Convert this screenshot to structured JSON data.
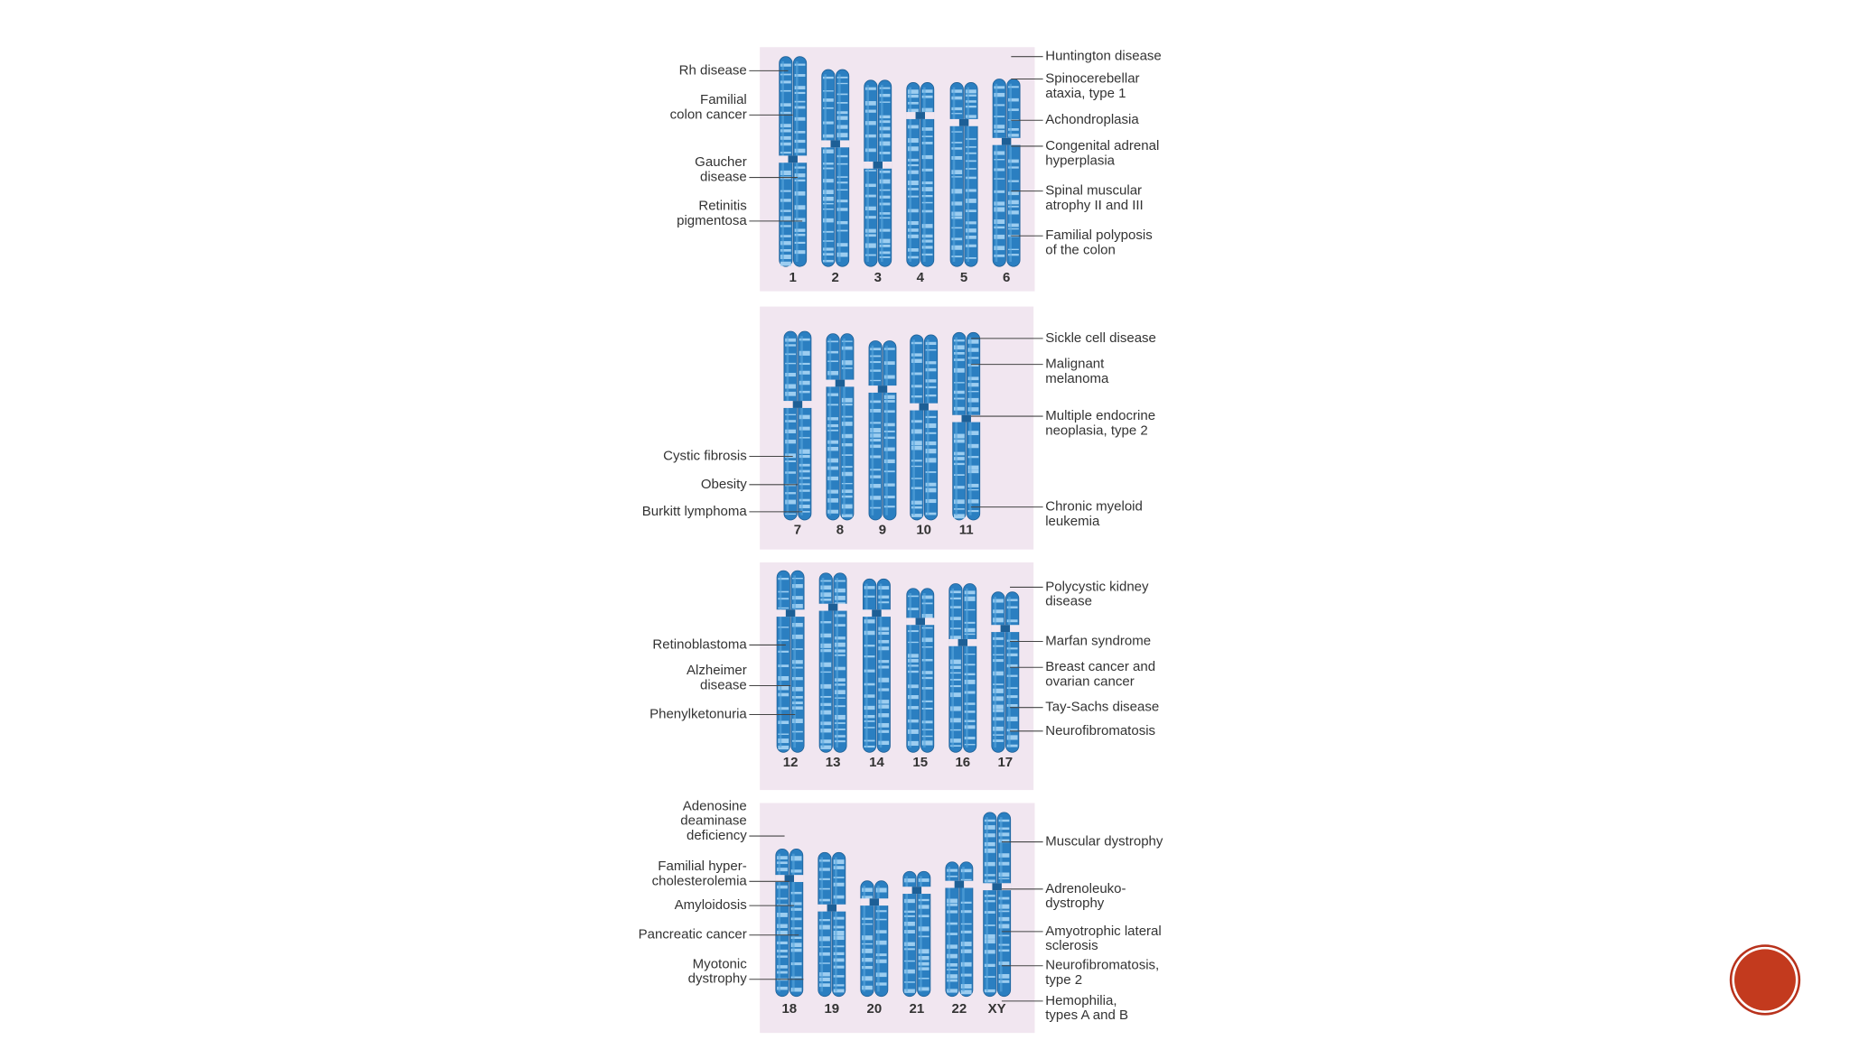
{
  "panels": [
    {
      "chromosomes": [
        "1",
        "2",
        "3",
        "4",
        "5",
        "6"
      ],
      "left": [
        {
          "lines": [
            "Rh disease"
          ]
        },
        {
          "lines": [
            "Familial",
            "colon cancer"
          ]
        },
        {
          "lines": [
            "Gaucher",
            "disease"
          ]
        },
        {
          "lines": [
            "Retinitis",
            "pigmentosa"
          ]
        }
      ],
      "right": [
        {
          "lines": [
            "Huntington disease"
          ]
        },
        {
          "lines": [
            "Spinocerebellar",
            "ataxia, type 1"
          ]
        },
        {
          "lines": [
            "Achondroplasia"
          ]
        },
        {
          "lines": [
            "Congenital adrenal",
            "hyperplasia"
          ]
        },
        {
          "lines": [
            "Spinal muscular",
            "atrophy II and III"
          ]
        },
        {
          "lines": [
            "Familial polyposis",
            "of the colon"
          ]
        }
      ]
    },
    {
      "chromosomes": [
        "7",
        "8",
        "9",
        "10",
        "11"
      ],
      "left": [
        {
          "lines": [
            "Cystic fibrosis"
          ]
        },
        {
          "lines": [
            "Obesity"
          ]
        },
        {
          "lines": [
            "Burkitt lymphoma"
          ]
        }
      ],
      "right": [
        {
          "lines": [
            "Sickle cell disease"
          ]
        },
        {
          "lines": [
            "Malignant",
            "melanoma"
          ]
        },
        {
          "lines": [
            "Multiple endocrine",
            "neoplasia, type 2"
          ]
        },
        {
          "lines": [
            "Chronic myeloid",
            "leukemia"
          ]
        }
      ]
    },
    {
      "chromosomes": [
        "12",
        "13",
        "14",
        "15",
        "16",
        "17"
      ],
      "left": [
        {
          "lines": [
            "Retinoblastoma"
          ]
        },
        {
          "lines": [
            "Alzheimer",
            "disease"
          ]
        },
        {
          "lines": [
            "Phenylketonuria"
          ]
        }
      ],
      "right": [
        {
          "lines": [
            "Polycystic kidney",
            "disease"
          ]
        },
        {
          "lines": [
            "Marfan syndrome"
          ]
        },
        {
          "lines": [
            "Breast cancer and",
            "ovarian cancer"
          ]
        },
        {
          "lines": [
            "Tay-Sachs disease"
          ]
        },
        {
          "lines": [
            "Neurofibromatosis"
          ]
        }
      ]
    },
    {
      "chromosomes": [
        "18",
        "19",
        "20",
        "21",
        "22",
        "XY"
      ],
      "left": [
        {
          "lines": [
            "Adenosine",
            "deaminase",
            "deficiency"
          ]
        },
        {
          "lines": [
            "Familial hyper-",
            "cholesterolemia"
          ]
        },
        {
          "lines": [
            "Amyloidosis"
          ]
        },
        {
          "lines": [
            "Pancreatic cancer"
          ]
        },
        {
          "lines": [
            "Myotonic",
            "dystrophy"
          ]
        }
      ],
      "right": [
        {
          "lines": [
            "Muscular dystrophy"
          ]
        },
        {
          "lines": [
            "Adrenoleuko-",
            "dystrophy"
          ]
        },
        {
          "lines": [
            "Amyotrophic lateral",
            "sclerosis"
          ]
        },
        {
          "lines": [
            "Neurofibromatosis,",
            "type 2"
          ]
        },
        {
          "lines": [
            "Hemophilia,",
            "types A and B"
          ]
        }
      ]
    }
  ]
}
